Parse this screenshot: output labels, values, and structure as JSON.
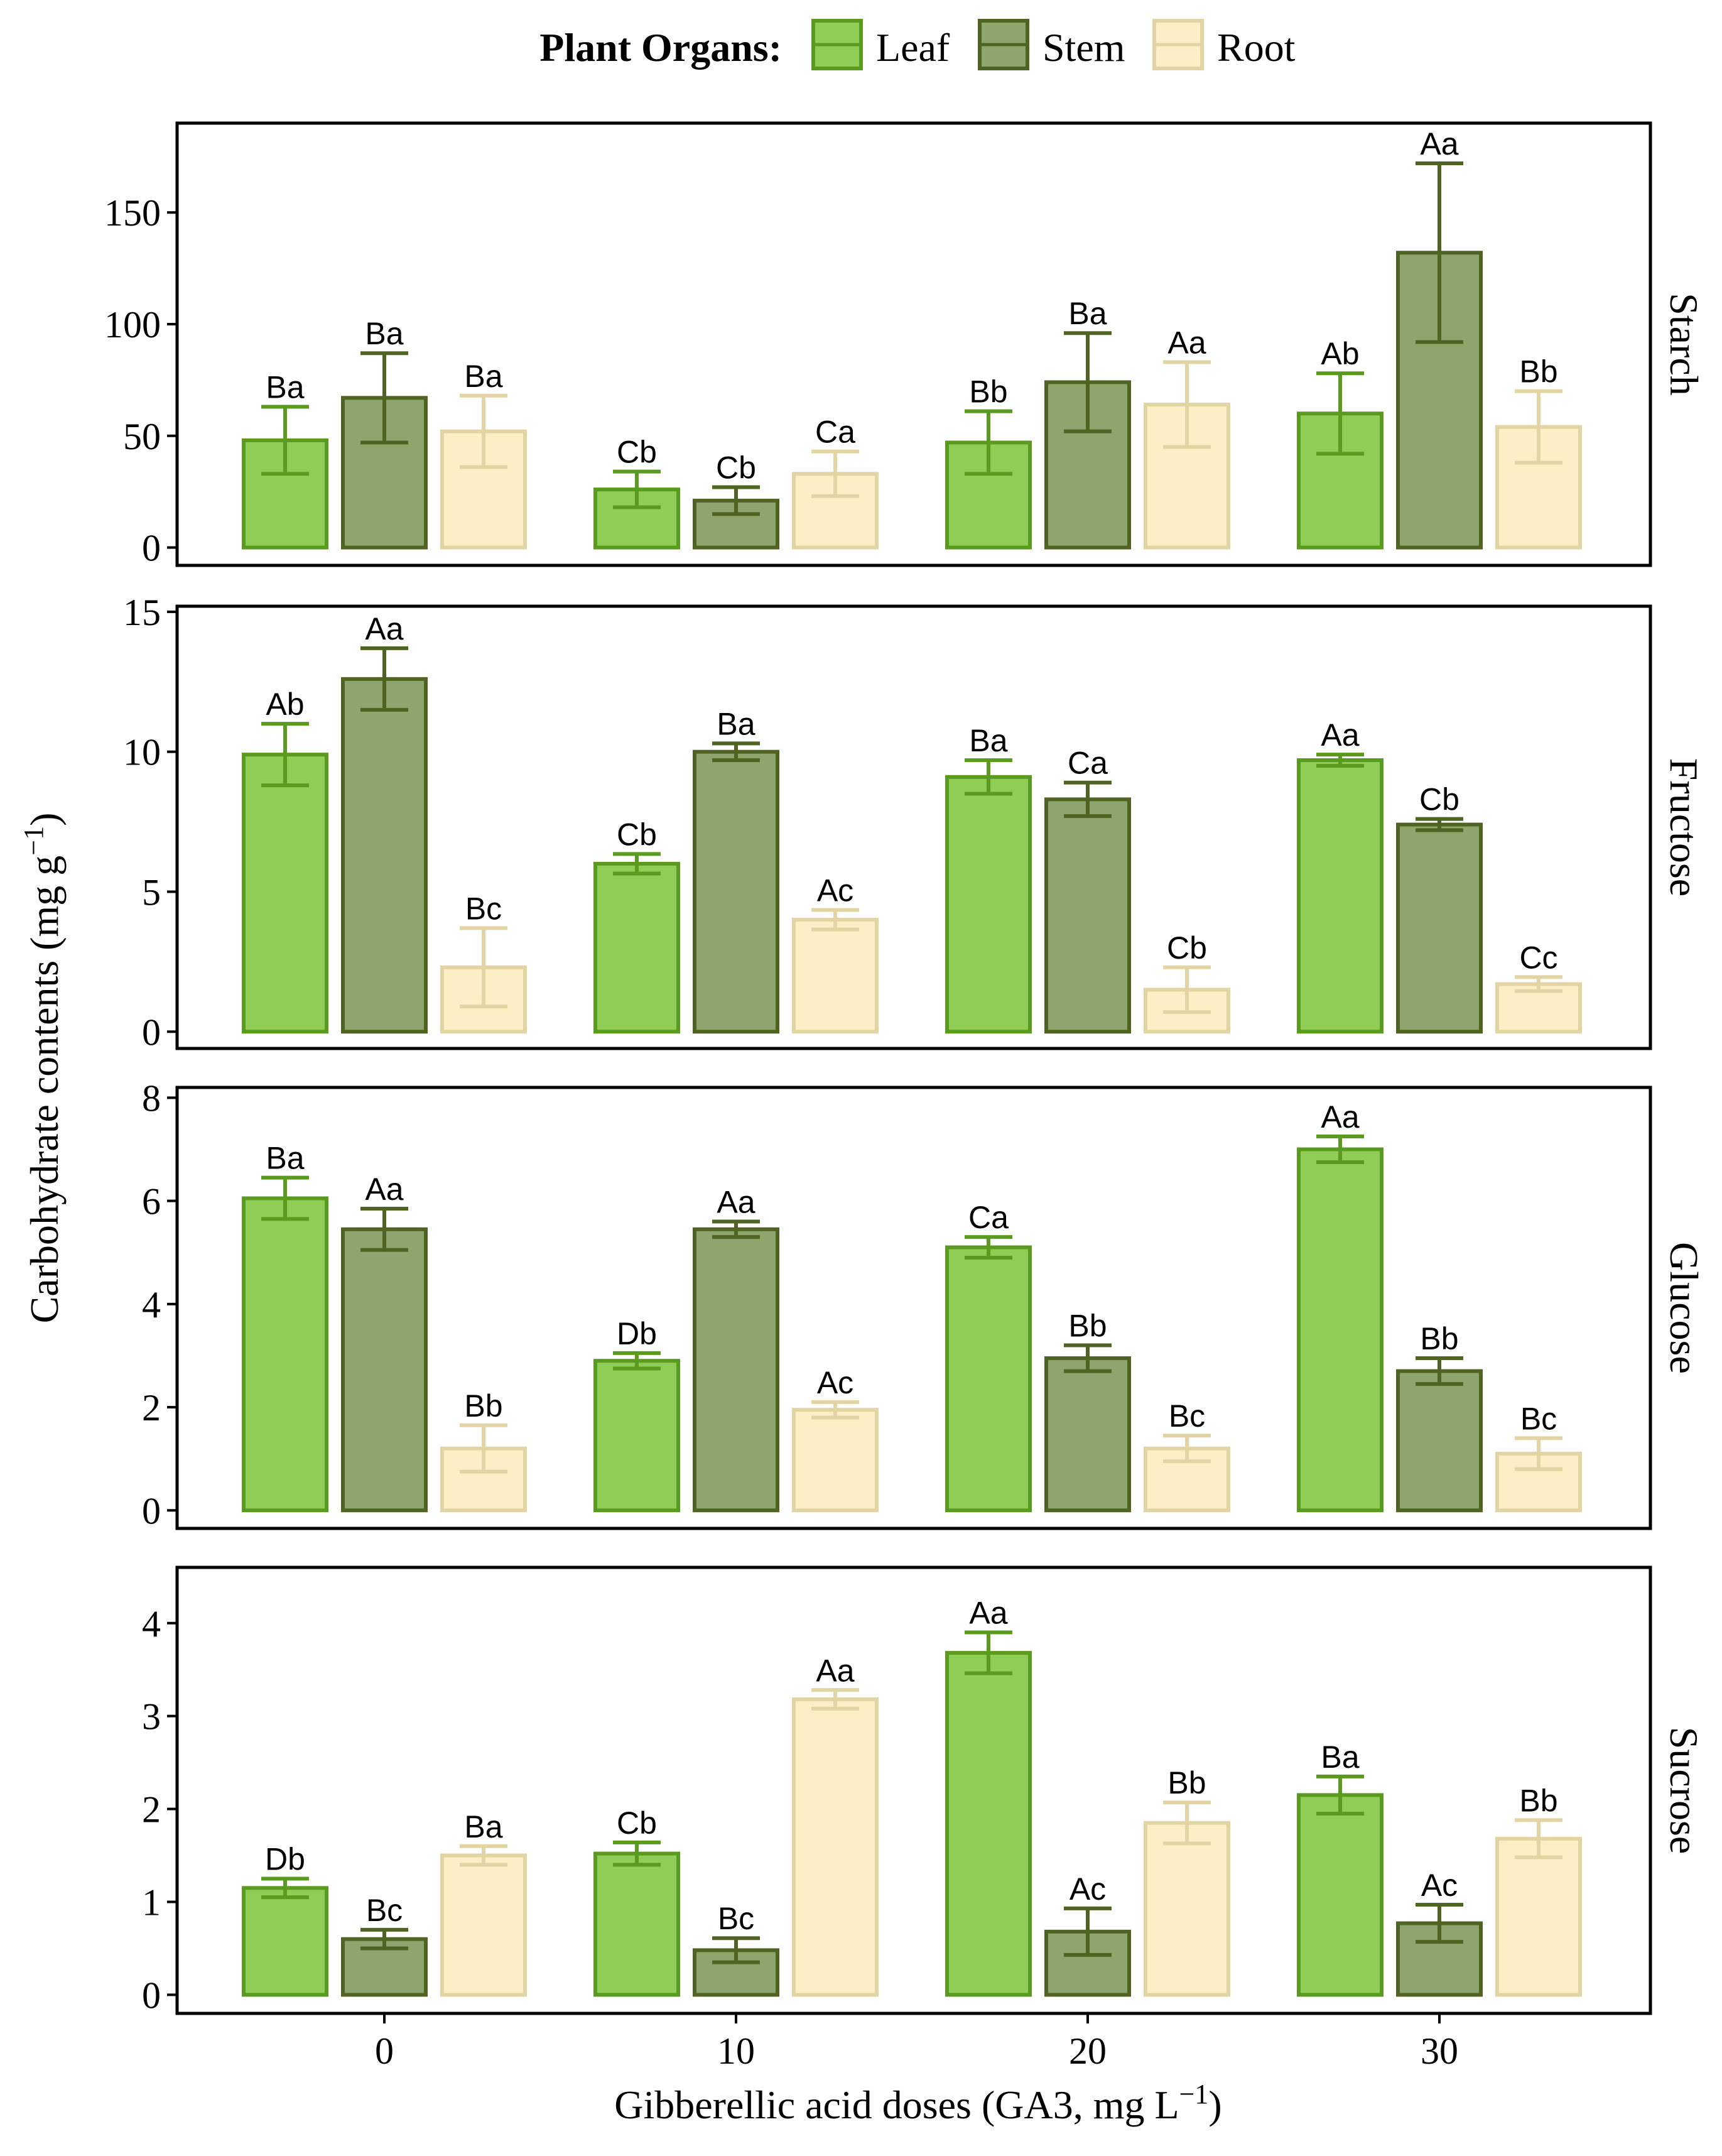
{
  "chart_data": {
    "type": "bar",
    "legend": {
      "title": "Plant Organs:",
      "placement": "top",
      "entries": [
        {
          "name": "Leaf",
          "fill": "#8fcd56",
          "stroke": "#5a9a1e"
        },
        {
          "name": "Stem",
          "fill": "#8ea66d",
          "stroke": "#4f6322"
        },
        {
          "name": "Root",
          "fill": "#fcefc6",
          "stroke": "#e2d4a3"
        }
      ]
    },
    "categories": [
      "0",
      "10",
      "20",
      "30"
    ],
    "xlabel": "Gibberellic acid doses (GA3, mg L",
    "xlabel_sup": "−1",
    "xlabel_end": ")",
    "ylabel": "Carbohydrate contents (mg g",
    "ylabel_sup": "−1",
    "ylabel_end": ")",
    "panels": [
      {
        "name": "Starch",
        "ylim": [
          -8,
          190
        ],
        "yticks": [
          0,
          50,
          100,
          150
        ],
        "series": [
          {
            "name": "Leaf",
            "values": [
              48,
              26,
              47,
              60
            ],
            "errors": [
              15,
              8,
              14,
              18
            ],
            "labels": [
              "Ba",
              "Cb",
              "Bb",
              "Ab"
            ]
          },
          {
            "name": "Stem",
            "values": [
              67,
              21,
              74,
              132
            ],
            "errors": [
              20,
              6,
              22,
              40
            ],
            "labels": [
              "Ba",
              "Cb",
              "Ba",
              "Aa"
            ]
          },
          {
            "name": "Root",
            "values": [
              52,
              33,
              64,
              54
            ],
            "errors": [
              16,
              10,
              19,
              16
            ],
            "labels": [
              "Ba",
              "Ca",
              "Aa",
              "Bb"
            ]
          }
        ]
      },
      {
        "name": "Fructose",
        "ylim": [
          -0.6,
          15.2
        ],
        "yticks": [
          0,
          5,
          10,
          15
        ],
        "series": [
          {
            "name": "Leaf",
            "values": [
              9.9,
              6.0,
              9.1,
              9.7
            ],
            "errors": [
              1.1,
              0.35,
              0.6,
              0.2
            ],
            "labels": [
              "Ab",
              "Cb",
              "Ba",
              "Aa"
            ]
          },
          {
            "name": "Stem",
            "values": [
              12.6,
              10.0,
              8.3,
              7.4
            ],
            "errors": [
              1.1,
              0.3,
              0.6,
              0.2
            ],
            "labels": [
              "Aa",
              "Ba",
              "Ca",
              "Cb"
            ]
          },
          {
            "name": "Root",
            "values": [
              2.3,
              4.0,
              1.5,
              1.7
            ],
            "errors": [
              1.4,
              0.35,
              0.8,
              0.25
            ],
            "labels": [
              "Bc",
              "Ac",
              "Cb",
              "Cc"
            ]
          }
        ]
      },
      {
        "name": "Glucose",
        "ylim": [
          -0.35,
          8.2
        ],
        "yticks": [
          0,
          2,
          4,
          6,
          8
        ],
        "series": [
          {
            "name": "Leaf",
            "values": [
              6.05,
              2.9,
              5.1,
              7.0
            ],
            "errors": [
              0.4,
              0.15,
              0.2,
              0.25
            ],
            "labels": [
              "Ba",
              "Db",
              "Ca",
              "Aa"
            ]
          },
          {
            "name": "Stem",
            "values": [
              5.45,
              5.45,
              2.95,
              2.7
            ],
            "errors": [
              0.4,
              0.15,
              0.25,
              0.25
            ],
            "labels": [
              "Aa",
              "Aa",
              "Bb",
              "Bb"
            ]
          },
          {
            "name": "Root",
            "values": [
              1.2,
              1.95,
              1.2,
              1.1
            ],
            "errors": [
              0.45,
              0.15,
              0.25,
              0.3
            ],
            "labels": [
              "Bb",
              "Ac",
              "Bc",
              "Bc"
            ]
          }
        ]
      },
      {
        "name": "Sucrose",
        "ylim": [
          -0.2,
          4.6
        ],
        "yticks": [
          0,
          1,
          2,
          3,
          4
        ],
        "series": [
          {
            "name": "Leaf",
            "values": [
              1.15,
              1.52,
              3.68,
              2.15
            ],
            "errors": [
              0.1,
              0.12,
              0.22,
              0.2
            ],
            "labels": [
              "Db",
              "Cb",
              "Aa",
              "Ba"
            ]
          },
          {
            "name": "Stem",
            "values": [
              0.6,
              0.48,
              0.68,
              0.77
            ],
            "errors": [
              0.1,
              0.13,
              0.25,
              0.2
            ],
            "labels": [
              "Bc",
              "Bc",
              "Ac",
              "Ac"
            ]
          },
          {
            "name": "Root",
            "values": [
              1.5,
              3.18,
              1.85,
              1.68
            ],
            "errors": [
              0.1,
              0.1,
              0.22,
              0.2
            ],
            "labels": [
              "Ba",
              "Aa",
              "Bb",
              "Bb"
            ]
          }
        ]
      }
    ]
  }
}
